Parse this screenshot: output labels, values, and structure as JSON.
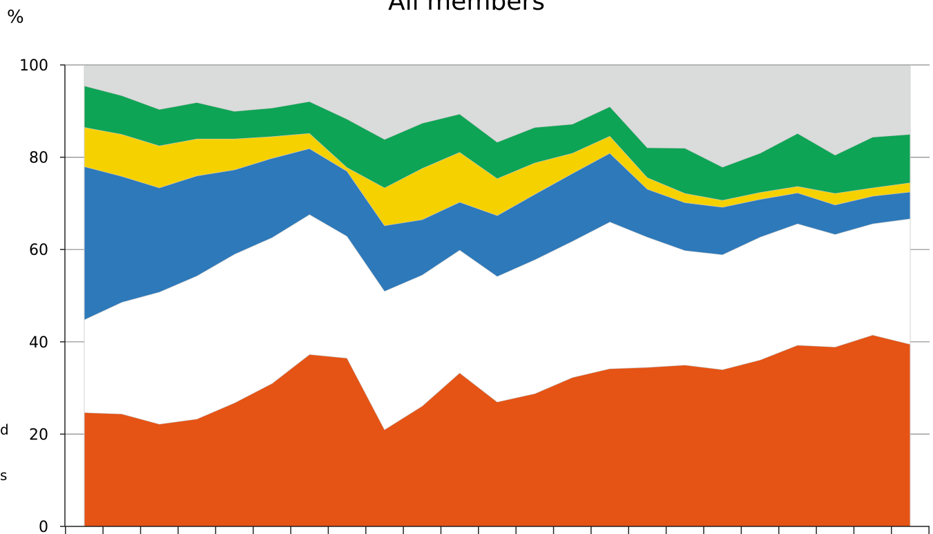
{
  "chart_data": {
    "type": "area",
    "stacked": true,
    "title": "All members",
    "ylabel": "%",
    "ylim": [
      0,
      100
    ],
    "yticks": [
      0,
      20,
      40,
      60,
      80,
      100
    ],
    "grid": true,
    "x_count": 23,
    "series": [
      {
        "color": "#e55315",
        "values": [
          24.7,
          24.4,
          22.2,
          23.3,
          26.8,
          31.0,
          37.3,
          36.5,
          21.0,
          26.1,
          33.3,
          27.0,
          28.8,
          32.3,
          34.2,
          34.5,
          35.0,
          34.0,
          36.1,
          39.3,
          38.9,
          41.5,
          39.5
        ]
      },
      {
        "color": "#ffffff",
        "values": [
          20.1,
          24.2,
          28.6,
          31.0,
          32.2,
          31.6,
          30.3,
          26.4,
          30.0,
          28.4,
          26.6,
          27.2,
          29.0,
          29.5,
          31.8,
          28.2,
          24.8,
          24.9,
          26.6,
          26.3,
          24.4,
          24.1,
          27.2
        ]
      },
      {
        "color": "#2d79ba",
        "values": [
          33.2,
          27.3,
          22.6,
          21.7,
          18.3,
          17.2,
          14.3,
          14.1,
          14.2,
          12.0,
          10.4,
          13.2,
          14.2,
          14.7,
          14.9,
          10.4,
          10.4,
          10.3,
          8.2,
          6.7,
          6.4,
          6.0,
          5.8
        ]
      },
      {
        "color": "#f6d100",
        "values": [
          8.5,
          9.1,
          9.1,
          8.0,
          6.7,
          4.7,
          3.3,
          0.8,
          8.2,
          11.1,
          10.8,
          8.0,
          6.8,
          4.4,
          3.7,
          2.5,
          2.0,
          1.5,
          1.5,
          1.4,
          2.5,
          1.8,
          2.0
        ]
      },
      {
        "color": "#0ea455",
        "values": [
          9.0,
          8.4,
          7.9,
          7.9,
          6.0,
          6.2,
          6.9,
          10.5,
          10.5,
          9.8,
          8.3,
          7.9,
          7.7,
          6.3,
          6.4,
          6.5,
          9.8,
          7.2,
          8.5,
          11.5,
          8.3,
          11.0,
          10.5
        ]
      },
      {
        "color": "#dadbdb",
        "values": [
          4.5,
          6.6,
          9.6,
          8.1,
          10.0,
          9.3,
          7.9,
          11.7,
          16.1,
          12.6,
          10.6,
          16.7,
          13.5,
          12.8,
          9.0,
          17.9,
          18.0,
          22.1,
          19.1,
          14.8,
          19.5,
          15.6,
          15.0
        ]
      }
    ]
  },
  "cut_texts": [
    "d",
    "s"
  ]
}
